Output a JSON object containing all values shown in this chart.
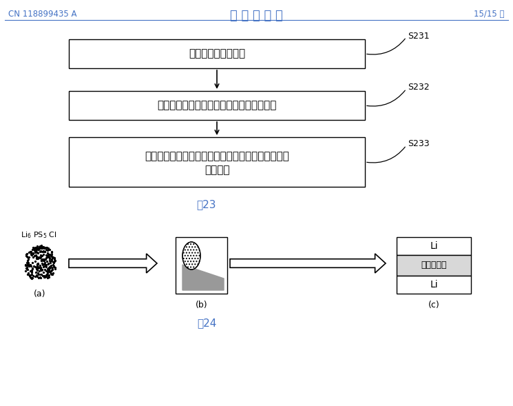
{
  "header_left": "CN 118899435 A",
  "header_center": "说 明 书 附 图",
  "header_right": "15/15 页",
  "header_color": "#4472C4",
  "fig23_label": "图23",
  "fig24_label": "图24",
  "fig_label_color": "#4472C4",
  "box1_text": "形成掺杂硫化物材料",
  "box2_text": "利用掺杂硫化物材料形成硫化物固态电解质",
  "box3_line1": "组装金属锂负极、硫化物固态电解质和正极，得到锂",
  "box3_line2": "离子电池",
  "label_s231": "S231",
  "label_s232": "S232",
  "label_s233": "S233",
  "label_a": "(a)",
  "label_b": "(b)",
  "label_c": "(c)",
  "battery_label_top": "Li",
  "battery_label_mid": "固态电解质",
  "battery_label_bot": "Li",
  "bg_color": "#ffffff"
}
